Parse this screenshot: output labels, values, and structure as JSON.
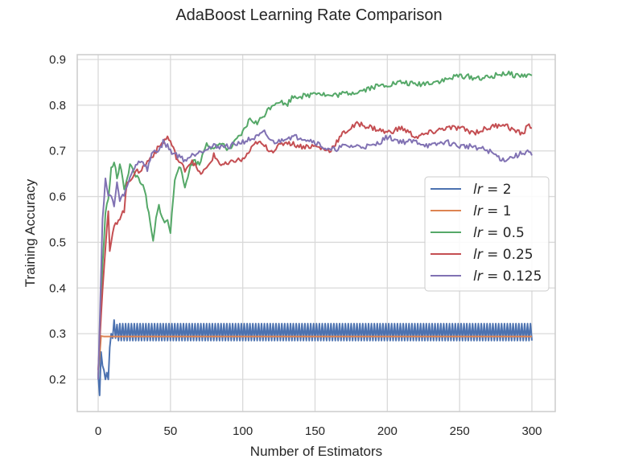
{
  "chart_data": {
    "type": "line",
    "title": "AdaBoost Learning Rate Comparison",
    "xlabel": "Number of Estimators",
    "ylabel": "Training Accuracy",
    "xlim": [
      -12,
      312
    ],
    "ylim": [
      0.125,
      0.912
    ],
    "xticks": [
      0,
      50,
      100,
      150,
      200,
      250,
      300
    ],
    "yticks": [
      0.2,
      0.3,
      0.4,
      0.5,
      0.6,
      0.7,
      0.8,
      0.9
    ],
    "grid": true,
    "legend_position": "center right",
    "series": [
      {
        "name": "lr = 2",
        "color": "#4c72b0",
        "x": [
          0,
          1,
          2,
          3,
          4,
          5,
          6,
          7,
          8,
          9,
          10,
          11,
          12,
          13,
          300
        ],
        "values": [
          0.21,
          0.165,
          0.26,
          0.23,
          0.22,
          0.2,
          0.215,
          0.2,
          0.27,
          0.3,
          0.29,
          0.33,
          0.29,
          0.32,
          0.3
        ],
        "note": "after ~13 estimators oscillates between 0.285 and 0.322 every step until 300"
      },
      {
        "name": "lr = 1",
        "color": "#dd8452",
        "x": [
          0,
          2,
          4,
          300
        ],
        "values": [
          0.21,
          0.295,
          0.294,
          0.294
        ]
      },
      {
        "name": "lr = 0.5",
        "color": "#55a868",
        "x": [
          0,
          3,
          5,
          7,
          9,
          11,
          13,
          15,
          18,
          20,
          22,
          25,
          28,
          30,
          33,
          36,
          38,
          40,
          42,
          44,
          46,
          48,
          50,
          53,
          56,
          60,
          63,
          66,
          70,
          75,
          80,
          85,
          90,
          95,
          100,
          105,
          110,
          115,
          120,
          125,
          130,
          135,
          140,
          145,
          150,
          160,
          170,
          180,
          190,
          200,
          210,
          220,
          230,
          240,
          250,
          260,
          270,
          280,
          290,
          300
        ],
        "values": [
          0.2,
          0.45,
          0.56,
          0.6,
          0.66,
          0.675,
          0.64,
          0.67,
          0.62,
          0.64,
          0.67,
          0.65,
          0.64,
          0.63,
          0.6,
          0.54,
          0.5,
          0.55,
          0.58,
          0.56,
          0.54,
          0.55,
          0.52,
          0.64,
          0.67,
          0.62,
          0.66,
          0.68,
          0.67,
          0.72,
          0.7,
          0.72,
          0.7,
          0.72,
          0.74,
          0.77,
          0.76,
          0.78,
          0.8,
          0.81,
          0.8,
          0.82,
          0.82,
          0.82,
          0.83,
          0.82,
          0.825,
          0.83,
          0.84,
          0.845,
          0.85,
          0.845,
          0.85,
          0.855,
          0.865,
          0.86,
          0.86,
          0.87,
          0.865,
          0.865
        ]
      },
      {
        "name": "lr = 0.25",
        "color": "#c44e52",
        "x": [
          0,
          3,
          5,
          7,
          8,
          10,
          12,
          14,
          16,
          18,
          20,
          25,
          30,
          35,
          40,
          45,
          48,
          50,
          55,
          60,
          65,
          70,
          75,
          80,
          85,
          90,
          95,
          100,
          110,
          120,
          130,
          140,
          150,
          160,
          170,
          180,
          190,
          200,
          210,
          220,
          230,
          240,
          250,
          260,
          270,
          280,
          290,
          295,
          297,
          300
        ],
        "values": [
          0.22,
          0.4,
          0.49,
          0.57,
          0.475,
          0.52,
          0.54,
          0.55,
          0.56,
          0.57,
          0.63,
          0.65,
          0.66,
          0.68,
          0.7,
          0.72,
          0.73,
          0.72,
          0.68,
          0.66,
          0.68,
          0.65,
          0.66,
          0.69,
          0.67,
          0.67,
          0.68,
          0.68,
          0.72,
          0.7,
          0.72,
          0.71,
          0.71,
          0.7,
          0.74,
          0.76,
          0.75,
          0.74,
          0.75,
          0.73,
          0.74,
          0.75,
          0.75,
          0.74,
          0.75,
          0.76,
          0.74,
          0.74,
          0.76,
          0.75
        ]
      },
      {
        "name": "lr = 0.125",
        "color": "#8172b3",
        "x": [
          0,
          3,
          5,
          7,
          9,
          11,
          13,
          15,
          17,
          20,
          23,
          26,
          30,
          34,
          38,
          42,
          45,
          48,
          50,
          55,
          60,
          65,
          70,
          80,
          90,
          100,
          110,
          115,
          120,
          125,
          130,
          140,
          150,
          160,
          170,
          180,
          190,
          200,
          210,
          220,
          230,
          240,
          250,
          260,
          270,
          280,
          290,
          297,
          300
        ],
        "values": [
          0.2,
          0.55,
          0.64,
          0.6,
          0.6,
          0.58,
          0.63,
          0.59,
          0.6,
          0.62,
          0.65,
          0.67,
          0.68,
          0.66,
          0.7,
          0.7,
          0.72,
          0.71,
          0.7,
          0.69,
          0.68,
          0.69,
          0.7,
          0.71,
          0.71,
          0.72,
          0.73,
          0.74,
          0.72,
          0.72,
          0.73,
          0.73,
          0.72,
          0.7,
          0.71,
          0.71,
          0.71,
          0.73,
          0.72,
          0.72,
          0.71,
          0.72,
          0.71,
          0.71,
          0.7,
          0.68,
          0.69,
          0.7,
          0.69
        ]
      }
    ]
  },
  "legend": {
    "items": [
      {
        "label_lhs": "lr",
        "label_rhs": "= 2",
        "color": "#4c72b0"
      },
      {
        "label_lhs": "lr",
        "label_rhs": "= 1",
        "color": "#dd8452"
      },
      {
        "label_lhs": "lr",
        "label_rhs": "= 0.5",
        "color": "#55a868"
      },
      {
        "label_lhs": "lr",
        "label_rhs": "= 0.25",
        "color": "#c44e52"
      },
      {
        "label_lhs": "lr",
        "label_rhs": "= 0.125",
        "color": "#8172b3"
      }
    ]
  }
}
